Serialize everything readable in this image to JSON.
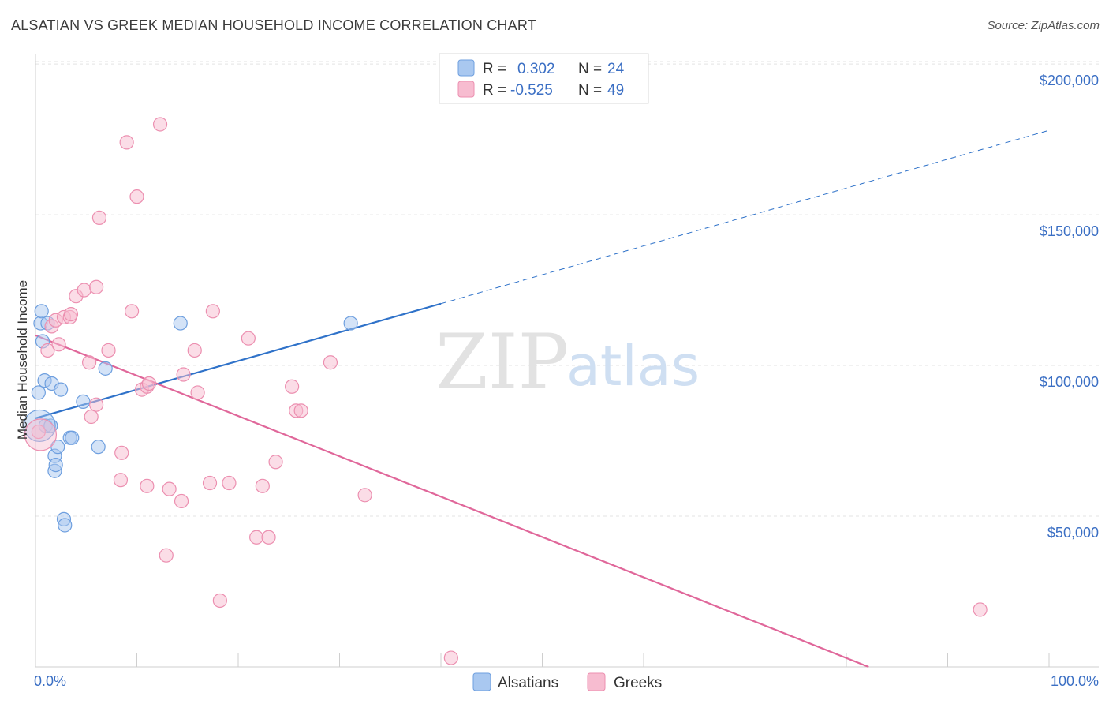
{
  "title": "ALSATIAN VS GREEK MEDIAN HOUSEHOLD INCOME CORRELATION CHART",
  "source": "Source: ZipAtlas.com",
  "watermark": {
    "zip": "ZIP",
    "atlas": "atlas"
  },
  "legend": {
    "rows": [
      {
        "r_label": "R =",
        "r_value": "0.302",
        "n_label": "N =",
        "n_value": "24",
        "color": "#a9c8f0",
        "stroke": "#6e9fdf"
      },
      {
        "r_label": "R =",
        "r_value": "-0.525",
        "n_label": "N =",
        "n_value": "49",
        "color": "#f7bcd0",
        "stroke": "#ec8fb0"
      }
    ]
  },
  "bottom_legend": [
    {
      "label": "Alsatians",
      "color": "#a9c8f0",
      "stroke": "#6e9fdf"
    },
    {
      "label": "Greeks",
      "color": "#f7bcd0",
      "stroke": "#ec8fb0"
    }
  ],
  "chart_data": {
    "type": "scatter",
    "title": "ALSATIAN VS GREEK MEDIAN HOUSEHOLD INCOME CORRELATION CHART",
    "xlabel": "",
    "ylabel": "Median Household Income",
    "xlim": [
      0,
      100
    ],
    "ylim": [
      0,
      205000
    ],
    "x_tick_labels": [
      "0.0%",
      "100.0%"
    ],
    "y_ticks": [
      50000,
      100000,
      150000,
      200000
    ],
    "y_tick_labels": [
      "$50,000",
      "$100,000",
      "$150,000",
      "$200,000"
    ],
    "grid": true,
    "series": [
      {
        "name": "Alsatians",
        "color": "#6e9fdf",
        "fill": "#a9c8f0",
        "points": [
          [
            0.3,
            91000
          ],
          [
            0.5,
            114000
          ],
          [
            0.6,
            118000
          ],
          [
            0.7,
            108000
          ],
          [
            0.9,
            95000
          ],
          [
            1.0,
            80000
          ],
          [
            1.2,
            114000
          ],
          [
            1.5,
            80000
          ],
          [
            1.6,
            94000
          ],
          [
            1.9,
            70000
          ],
          [
            1.9,
            65000
          ],
          [
            2.0,
            67000
          ],
          [
            2.2,
            73000
          ],
          [
            2.5,
            92000
          ],
          [
            2.8,
            49000
          ],
          [
            2.9,
            47000
          ],
          [
            3.4,
            76000
          ],
          [
            3.6,
            76000
          ],
          [
            4.7,
            88000
          ],
          [
            6.2,
            73000
          ],
          [
            6.9,
            99000
          ],
          [
            14.3,
            114000
          ],
          [
            31.1,
            114000
          ],
          [
            0.4,
            80000
          ]
        ],
        "trend": {
          "x0": 0,
          "y0": 82500,
          "x1": 40,
          "y1": 120500,
          "x_dash_end": 100,
          "y_dash_end": 178000
        }
      },
      {
        "name": "Greeks",
        "color": "#ec8fb0",
        "fill": "#f7bcd0",
        "points": [
          [
            0.3,
            78000
          ],
          [
            1.2,
            105000
          ],
          [
            1.6,
            113000
          ],
          [
            2.0,
            115000
          ],
          [
            2.3,
            107000
          ],
          [
            2.8,
            116000
          ],
          [
            3.4,
            116000
          ],
          [
            3.5,
            117000
          ],
          [
            4.0,
            123000
          ],
          [
            4.8,
            125000
          ],
          [
            5.3,
            101000
          ],
          [
            5.5,
            83000
          ],
          [
            6.0,
            87000
          ],
          [
            6.0,
            126000
          ],
          [
            6.3,
            149000
          ],
          [
            7.2,
            105000
          ],
          [
            8.4,
            62000
          ],
          [
            8.5,
            71000
          ],
          [
            9.0,
            174000
          ],
          [
            9.5,
            118000
          ],
          [
            10.0,
            156000
          ],
          [
            10.5,
            92000
          ],
          [
            11.0,
            60000
          ],
          [
            11.0,
            93000
          ],
          [
            11.2,
            94000
          ],
          [
            12.3,
            180000
          ],
          [
            12.9,
            37000
          ],
          [
            13.2,
            59000
          ],
          [
            14.4,
            55000
          ],
          [
            14.6,
            97000
          ],
          [
            15.7,
            105000
          ],
          [
            16.0,
            91000
          ],
          [
            17.2,
            61000
          ],
          [
            17.5,
            118000
          ],
          [
            18.2,
            22000
          ],
          [
            19.1,
            61000
          ],
          [
            21.0,
            109000
          ],
          [
            21.8,
            43000
          ],
          [
            22.4,
            60000
          ],
          [
            23.0,
            43000
          ],
          [
            23.7,
            68000
          ],
          [
            25.3,
            93000
          ],
          [
            25.7,
            85000
          ],
          [
            26.2,
            85000
          ],
          [
            29.1,
            101000
          ],
          [
            32.5,
            57000
          ],
          [
            41.0,
            3000
          ],
          [
            93.2,
            19000
          ],
          [
            0.5,
            77000
          ]
        ],
        "trend": {
          "x0": 0,
          "y0": 110000,
          "x1": 82.2,
          "y1": 0
        }
      }
    ]
  }
}
